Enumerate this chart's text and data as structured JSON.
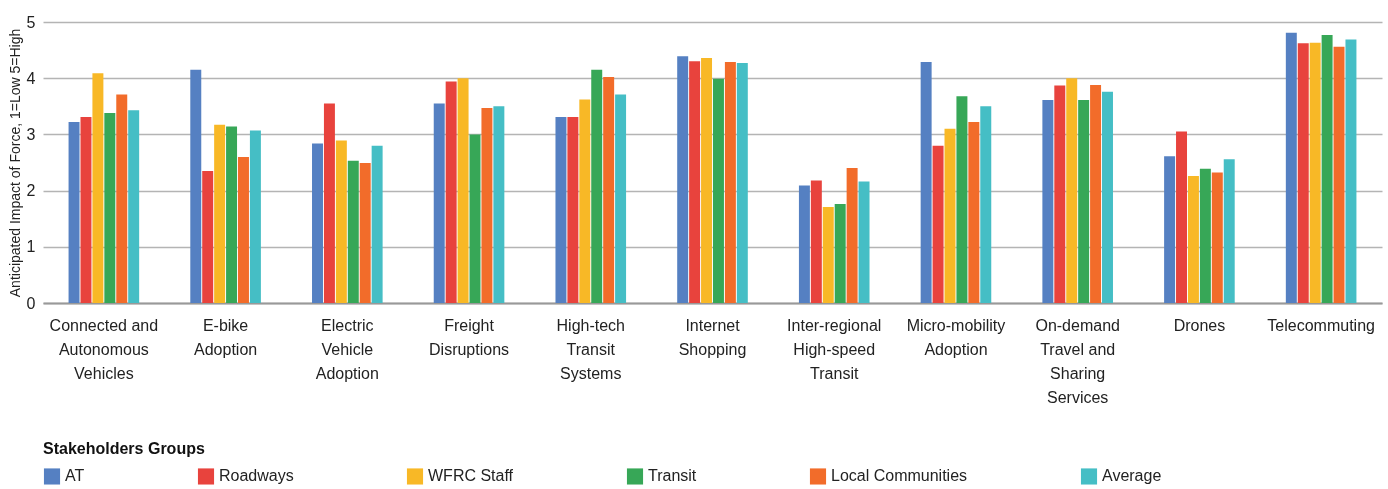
{
  "chart_data": {
    "type": "bar",
    "ylabel": "Anticipated Impact of Force, 1=Low 5=High",
    "legend_title": "Stakeholders Groups",
    "categories": [
      "Connected and Autonomous Vehicles",
      "E-bike Adoption",
      "Electric Vehicle Adoption",
      "Freight Disruptions",
      "High-tech Transit Systems",
      "Internet Shopping",
      "Inter-regional High-speed Transit",
      "Micro-mobility Adoption",
      "On-demand Travel and Sharing Services",
      "Drones",
      "Telecommuting"
    ],
    "series": [
      {
        "name": "AT",
        "color": "#5580c2",
        "values": [
          3.22,
          4.15,
          2.84,
          3.55,
          3.31,
          4.39,
          2.09,
          4.29,
          3.61,
          2.61,
          4.81
        ]
      },
      {
        "name": "Roadways",
        "color": "#e8433d",
        "values": [
          3.31,
          2.35,
          3.55,
          3.94,
          3.31,
          4.3,
          2.18,
          2.8,
          3.87,
          3.05,
          4.62
        ]
      },
      {
        "name": "WFRC Staff",
        "color": "#f8b826",
        "values": [
          4.09,
          3.17,
          2.89,
          4.0,
          3.62,
          4.36,
          1.71,
          3.1,
          4.0,
          2.26,
          4.63
        ]
      },
      {
        "name": "Transit",
        "color": "#37a757",
        "values": [
          3.38,
          3.14,
          2.53,
          3.0,
          4.15,
          3.99,
          1.76,
          3.68,
          3.61,
          2.39,
          4.77
        ]
      },
      {
        "name": "Local Communities",
        "color": "#f26c2a",
        "values": [
          3.71,
          2.6,
          2.49,
          3.47,
          4.02,
          4.29,
          2.4,
          3.22,
          3.88,
          2.32,
          4.56
        ]
      },
      {
        "name": "Average",
        "color": "#45bec5",
        "values": [
          3.43,
          3.07,
          2.8,
          3.5,
          3.71,
          4.27,
          2.16,
          3.5,
          3.76,
          2.56,
          4.69
        ]
      }
    ],
    "ylim": [
      0,
      5
    ],
    "yticks": [
      0,
      1,
      2,
      3,
      4,
      5
    ],
    "grid": true,
    "legend": "bottom"
  }
}
